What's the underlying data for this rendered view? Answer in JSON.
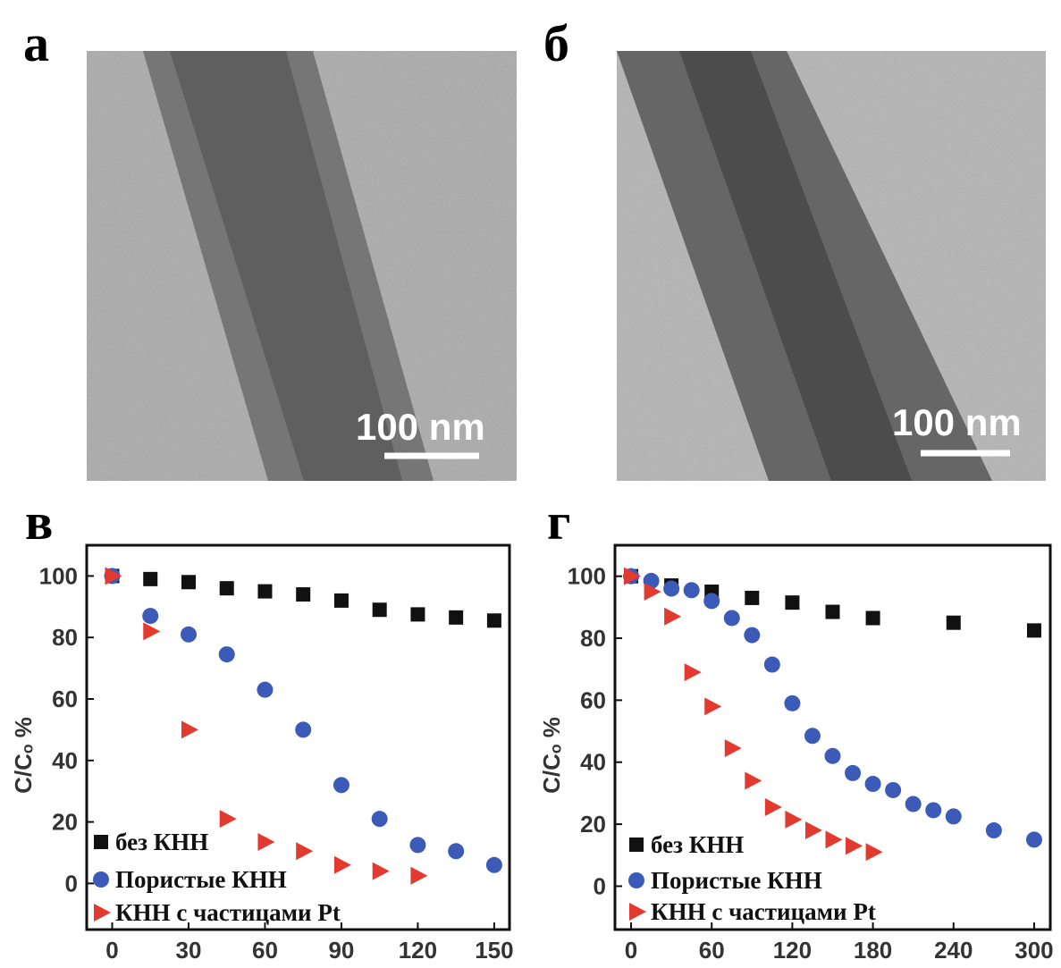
{
  "panels": [
    {
      "label": "а",
      "scale_bar": "100 nm"
    },
    {
      "label": "б",
      "scale_bar": "100 nm"
    }
  ],
  "chart_data": [
    {
      "type": "scatter",
      "title": "в",
      "ylabel": "C/Cₒ %",
      "xlim": [
        -10,
        156
      ],
      "ylim": [
        -15,
        110
      ],
      "xticks": [
        0,
        30,
        60,
        90,
        120,
        150
      ],
      "yticks": [
        0,
        20,
        40,
        60,
        80,
        100
      ],
      "series": [
        {
          "name": "без КНН",
          "color": "#111111",
          "marker": "square",
          "x": [
            0,
            15,
            30,
            45,
            60,
            75,
            90,
            105,
            120,
            135,
            150
          ],
          "values": [
            100,
            99,
            98,
            96,
            95,
            94,
            92,
            89,
            87.5,
            86.5,
            85.5
          ]
        },
        {
          "name": "Пористые КНН",
          "color": "#3c5ab8",
          "marker": "circle",
          "x": [
            0,
            15,
            30,
            45,
            60,
            75,
            90,
            105,
            120,
            135,
            150
          ],
          "values": [
            100,
            87,
            81,
            74.5,
            63,
            50,
            32,
            21,
            12.5,
            10.5,
            6
          ]
        },
        {
          "name": "КНН с частицами Pt",
          "color": "#e23a2e",
          "marker": "triangle",
          "x": [
            0,
            15,
            30,
            45,
            60,
            75,
            90,
            105,
            120
          ],
          "values": [
            100,
            82,
            50,
            21,
            13.5,
            10.5,
            6,
            4,
            2.5
          ]
        }
      ]
    },
    {
      "type": "scatter",
      "title": "г",
      "ylabel": "C/Cₒ %",
      "xlim": [
        -12,
        312
      ],
      "ylim": [
        -14,
        110
      ],
      "xticks": [
        0,
        60,
        120,
        180,
        240,
        300
      ],
      "yticks": [
        0,
        20,
        40,
        60,
        80,
        100
      ],
      "series": [
        {
          "name": "без КНН",
          "color": "#111111",
          "marker": "square",
          "x": [
            0,
            30,
            60,
            90,
            120,
            150,
            180,
            240,
            300
          ],
          "values": [
            100,
            97,
            95,
            93,
            91.5,
            88.5,
            86.5,
            85,
            82.5
          ]
        },
        {
          "name": "Пористые КНН",
          "color": "#3c5ab8",
          "marker": "circle",
          "x": [
            0,
            15,
            30,
            45,
            60,
            75,
            90,
            105,
            120,
            135,
            150,
            165,
            180,
            195,
            210,
            225,
            240,
            270,
            300
          ],
          "values": [
            100,
            98.5,
            96,
            95.5,
            92,
            86.5,
            81,
            71.5,
            59,
            48.5,
            42,
            36.5,
            33,
            31,
            26.5,
            24.5,
            22.5,
            18,
            15
          ]
        },
        {
          "name": "КНН с частицами Pt",
          "color": "#e23a2e",
          "marker": "triangle",
          "x": [
            0,
            15,
            30,
            45,
            60,
            75,
            90,
            105,
            120,
            135,
            150,
            165,
            180
          ],
          "values": [
            100,
            95,
            87,
            69,
            58,
            44.5,
            34,
            25.5,
            21.5,
            18,
            15,
            13,
            11
          ]
        }
      ]
    }
  ]
}
